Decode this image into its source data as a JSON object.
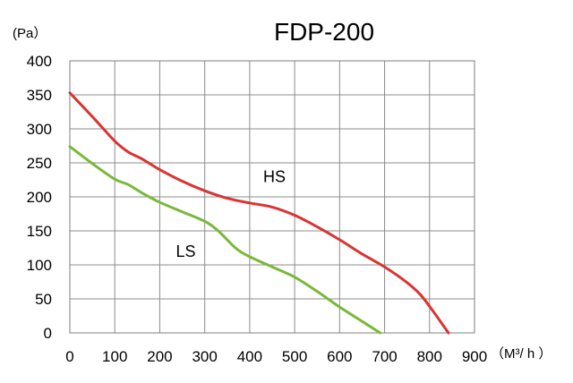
{
  "chart_data": {
    "type": "line",
    "title": "FDP-200",
    "ylabel": "(Pa）",
    "xlabel": "（M³/ h ）",
    "xlim": [
      0,
      900
    ],
    "ylim": [
      0,
      400
    ],
    "x_ticks": [
      "0",
      "100",
      "200",
      "300",
      "400",
      "500",
      "600",
      "700",
      "800",
      "900"
    ],
    "y_ticks": [
      "0",
      "50",
      "100",
      "150",
      "200",
      "250",
      "300",
      "350",
      "400"
    ],
    "grid": true,
    "series": [
      {
        "name": "HS",
        "color": "#d93434",
        "points": [
          [
            0,
            353
          ],
          [
            50,
            318
          ],
          [
            100,
            282
          ],
          [
            130,
            266
          ],
          [
            160,
            256
          ],
          [
            200,
            240
          ],
          [
            250,
            223
          ],
          [
            300,
            209
          ],
          [
            350,
            198
          ],
          [
            400,
            191
          ],
          [
            450,
            185
          ],
          [
            500,
            173
          ],
          [
            550,
            156
          ],
          [
            600,
            137
          ],
          [
            650,
            116
          ],
          [
            700,
            97
          ],
          [
            750,
            74
          ],
          [
            780,
            56
          ],
          [
            810,
            30
          ],
          [
            842,
            0
          ]
        ]
      },
      {
        "name": "LS",
        "color": "#7ab839",
        "points": [
          [
            0,
            274
          ],
          [
            50,
            249
          ],
          [
            100,
            226
          ],
          [
            130,
            218
          ],
          [
            160,
            206
          ],
          [
            200,
            192
          ],
          [
            250,
            178
          ],
          [
            300,
            164
          ],
          [
            330,
            150
          ],
          [
            370,
            124
          ],
          [
            400,
            112
          ],
          [
            450,
            97
          ],
          [
            500,
            82
          ],
          [
            550,
            61
          ],
          [
            600,
            38
          ],
          [
            650,
            17
          ],
          [
            690,
            0
          ]
        ]
      }
    ]
  }
}
